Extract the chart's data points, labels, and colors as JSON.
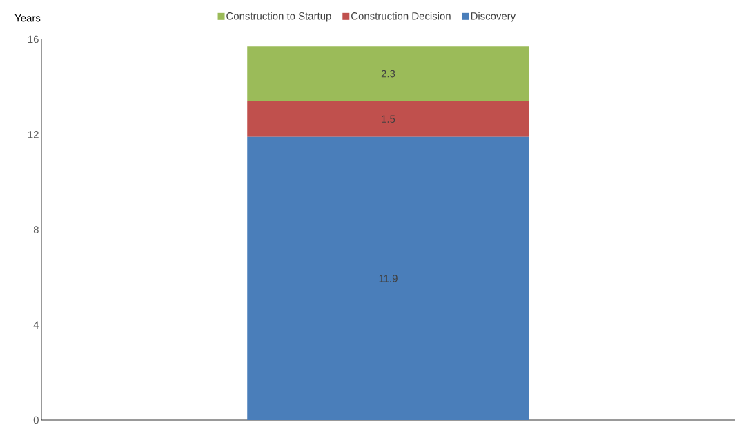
{
  "chart_data": {
    "type": "bar",
    "stacked": true,
    "ylabel": "Years",
    "categories": [
      null
    ],
    "series": [
      {
        "name": "Discovery",
        "color": "#4a7eba",
        "values": [
          11.9
        ]
      },
      {
        "name": "Construction Decision",
        "color": "#c0504d",
        "values": [
          1.5
        ]
      },
      {
        "name": "Construction to Startup",
        "color": "#9bbb59",
        "values": [
          2.3
        ]
      }
    ],
    "ylim": [
      0,
      16
    ],
    "yticks": [
      0,
      4,
      8,
      12,
      16
    ],
    "grid": false,
    "legend": "top",
    "data_labels": true
  }
}
